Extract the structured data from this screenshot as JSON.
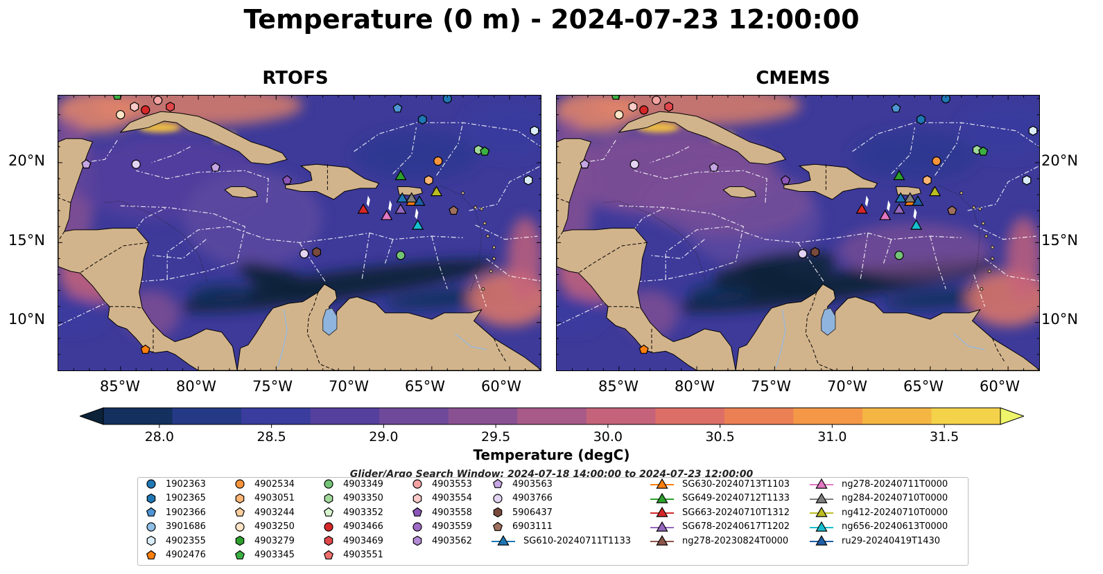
{
  "title": "Temperature (0 m) - 2024-07-23 12:00:00",
  "panels": [
    {
      "title": "RTOFS"
    },
    {
      "title": "CMEMS"
    }
  ],
  "lat_labels": [
    "20°N",
    "15°N",
    "10°N"
  ],
  "lon_labels": [
    "85°W",
    "80°W",
    "75°W",
    "70°W",
    "65°W",
    "60°W"
  ],
  "colorbar": {
    "label": "Temperature (degC)",
    "ticks": [
      "28.0",
      "28.5",
      "29.0",
      "29.5",
      "30.0",
      "30.5",
      "31.0",
      "31.5"
    ],
    "range": [
      27.75,
      31.75
    ],
    "colors": [
      "#0b2238",
      "#13305e",
      "#253a86",
      "#3a3c9e",
      "#55409e",
      "#6f4a9a",
      "#8a5192",
      "#a85a88",
      "#c5637b",
      "#dc6e68",
      "#ec8055",
      "#f49848",
      "#f5b543",
      "#f4d24a",
      "#eef56a"
    ]
  },
  "legend": {
    "title": "Glider/Argo Search Window: 2024-07-18 14:00:00 to 2024-07-23 12:00:00",
    "columns": [
      [
        {
          "label": "1902363",
          "shape": "circle",
          "color": "#1f77b4"
        },
        {
          "label": "1902365",
          "shape": "hexagon",
          "color": "#1f77b4"
        },
        {
          "label": "1902366",
          "shape": "pentagon",
          "color": "#4f95d4"
        },
        {
          "label": "3901686",
          "shape": "circle",
          "color": "#8fbfe6"
        },
        {
          "label": "4902355",
          "shape": "hexagon",
          "color": "#d9ecf7"
        },
        {
          "label": "4902476",
          "shape": "pentagon",
          "color": "#ff7f0e"
        }
      ],
      [
        {
          "label": "4902534",
          "shape": "circle",
          "color": "#f7953c"
        },
        {
          "label": "4903051",
          "shape": "hexagon",
          "color": "#ffb574"
        },
        {
          "label": "4903244",
          "shape": "pentagon",
          "color": "#ffcf9e"
        },
        {
          "label": "4903250",
          "shape": "circle",
          "color": "#ffe4c6"
        },
        {
          "label": "4903279",
          "shape": "hexagon",
          "color": "#2ca02c"
        },
        {
          "label": "4903345",
          "shape": "pentagon",
          "color": "#3cb043"
        }
      ],
      [
        {
          "label": "4903349",
          "shape": "circle",
          "color": "#74c476"
        },
        {
          "label": "4903350",
          "shape": "hexagon",
          "color": "#a1d99b"
        },
        {
          "label": "4903352",
          "shape": "pentagon",
          "color": "#d9f5cf"
        },
        {
          "label": "4903466",
          "shape": "circle",
          "color": "#d62728"
        },
        {
          "label": "4903469",
          "shape": "hexagon",
          "color": "#e0474a"
        },
        {
          "label": "4903551",
          "shape": "pentagon",
          "color": "#ef6f6c"
        }
      ],
      [
        {
          "label": "4903553",
          "shape": "circle",
          "color": "#f4a3a3"
        },
        {
          "label": "4903554",
          "shape": "hexagon",
          "color": "#fbc9c7"
        },
        {
          "label": "4903558",
          "shape": "pentagon",
          "color": "#8b55b8"
        },
        {
          "label": "4903559",
          "shape": "circle",
          "color": "#9e6bc6"
        },
        {
          "label": "4903562",
          "shape": "hexagon",
          "color": "#b38ad6"
        }
      ],
      [
        {
          "label": "4903563",
          "shape": "pentagon",
          "color": "#c5a6e3"
        },
        {
          "label": "4903766",
          "shape": "circle",
          "color": "#e4d4f4"
        },
        {
          "label": "5906437",
          "shape": "hexagon",
          "color": "#7a4a3d"
        },
        {
          "label": "6903111",
          "shape": "pentagon",
          "color": "#a0705e"
        },
        {
          "label": "SG610-20240711T1133",
          "shape": "triangle",
          "color": "#1f77b4",
          "line": true
        }
      ],
      [
        {
          "label": "SG630-20240713T1103",
          "shape": "triangle",
          "color": "#ff7f0e",
          "line": true
        },
        {
          "label": "SG649-20240712T1133",
          "shape": "triangle",
          "color": "#2ca02c",
          "line": true
        },
        {
          "label": "SG663-20240710T1312",
          "shape": "triangle",
          "color": "#d62728",
          "line": true
        },
        {
          "label": "SG678-20240617T1202",
          "shape": "triangle",
          "color": "#9467bd",
          "line": true
        },
        {
          "label": "ng278-20230824T0000",
          "shape": "triangle",
          "color": "#8c564b",
          "line": true
        }
      ],
      [
        {
          "label": "ng278-20240711T0000",
          "shape": "triangle",
          "color": "#e377c2",
          "line": true
        },
        {
          "label": "ng284-20240710T0000",
          "shape": "triangle",
          "color": "#7f7f7f",
          "line": true
        },
        {
          "label": "ng412-20240710T0000",
          "shape": "triangle",
          "color": "#bcbd22",
          "line": true
        },
        {
          "label": "ng656-20240613T0000",
          "shape": "triangle",
          "color": "#17becf",
          "line": true
        },
        {
          "label": "ru29-20240419T1430",
          "shape": "triangle",
          "color": "#1f5fa8",
          "line": true
        }
      ]
    ]
  },
  "map": {
    "extent_lon": [
      -89,
      -58
    ],
    "extent_lat": [
      7,
      24.2
    ],
    "land_color": "#d2b48c",
    "ocean_base": "#3d3a9a",
    "lake_color": "#8fb4dd",
    "floats": [
      {
        "lon": -85.0,
        "lat": 23.0,
        "color": "#ffe4c6",
        "shape": "circle"
      },
      {
        "lon": -84.1,
        "lat": 23.5,
        "color": "#fbc9c7",
        "shape": "hexagon"
      },
      {
        "lon": -83.4,
        "lat": 23.3,
        "color": "#d62728",
        "shape": "circle"
      },
      {
        "lon": -82.6,
        "lat": 23.9,
        "color": "#f4a3a3",
        "shape": "circle"
      },
      {
        "lon": -81.8,
        "lat": 23.5,
        "color": "#e0474a",
        "shape": "hexagon"
      },
      {
        "lon": -85.2,
        "lat": 24.2,
        "color": "#3cb043",
        "shape": "pentagon"
      },
      {
        "lon": -87.2,
        "lat": 19.9,
        "color": "#c5a6e3",
        "shape": "pentagon"
      },
      {
        "lon": -84.0,
        "lat": 19.9,
        "color": "#e4d4f4",
        "shape": "circle"
      },
      {
        "lon": -78.9,
        "lat": 19.7,
        "color": "#c5a6e3",
        "shape": "pentagon"
      },
      {
        "lon": -74.3,
        "lat": 18.9,
        "color": "#8b55b8",
        "shape": "pentagon"
      },
      {
        "lon": -67.2,
        "lat": 23.4,
        "color": "#4f95d4",
        "shape": "pentagon"
      },
      {
        "lon": -65.6,
        "lat": 22.7,
        "color": "#1f77b4",
        "shape": "hexagon"
      },
      {
        "lon": -64.0,
        "lat": 24.0,
        "color": "#1f77b4",
        "shape": "circle"
      },
      {
        "lon": -58.4,
        "lat": 22.0,
        "color": "#d9ecf7",
        "shape": "hexagon"
      },
      {
        "lon": -58.8,
        "lat": 18.9,
        "color": "#d9ecf7",
        "shape": "hexagon"
      },
      {
        "lon": -64.6,
        "lat": 20.1,
        "color": "#f7953c",
        "shape": "circle"
      },
      {
        "lon": -62.0,
        "lat": 20.8,
        "color": "#a1d99b",
        "shape": "hexagon"
      },
      {
        "lon": -61.6,
        "lat": 20.7,
        "color": "#3cb043",
        "shape": "pentagon"
      },
      {
        "lon": -65.2,
        "lat": 18.9,
        "color": "#ffb574",
        "shape": "hexagon"
      },
      {
        "lon": -63.6,
        "lat": 17.0,
        "color": "#a0705e",
        "shape": "pentagon"
      },
      {
        "lon": -73.2,
        "lat": 14.3,
        "color": "#e4d4f4",
        "shape": "circle"
      },
      {
        "lon": -72.4,
        "lat": 14.4,
        "color": "#7a4a3d",
        "shape": "hexagon"
      },
      {
        "lon": -67.0,
        "lat": 14.2,
        "color": "#74c476",
        "shape": "circle"
      },
      {
        "lon": -83.4,
        "lat": 8.3,
        "color": "#ff7f0e",
        "shape": "pentagon"
      }
    ],
    "gliders": [
      {
        "lon": -69.4,
        "lat": 17.1,
        "color": "#d62728"
      },
      {
        "lon": -67.9,
        "lat": 16.7,
        "color": "#e377c2"
      },
      {
        "lon": -67.0,
        "lat": 17.1,
        "color": "#9467bd"
      },
      {
        "lon": -66.9,
        "lat": 17.8,
        "color": "#1f77b4"
      },
      {
        "lon": -67.0,
        "lat": 19.2,
        "color": "#2ca02c"
      },
      {
        "lon": -66.3,
        "lat": 17.6,
        "color": "#ff7f0e"
      },
      {
        "lon": -65.8,
        "lat": 17.6,
        "color": "#1f5fa8"
      },
      {
        "lon": -64.7,
        "lat": 18.2,
        "color": "#bcbd22"
      },
      {
        "lon": -65.9,
        "lat": 16.1,
        "color": "#17becf"
      },
      {
        "lon": -66.3,
        "lat": 17.8,
        "color": "#7f7f7f"
      }
    ]
  }
}
